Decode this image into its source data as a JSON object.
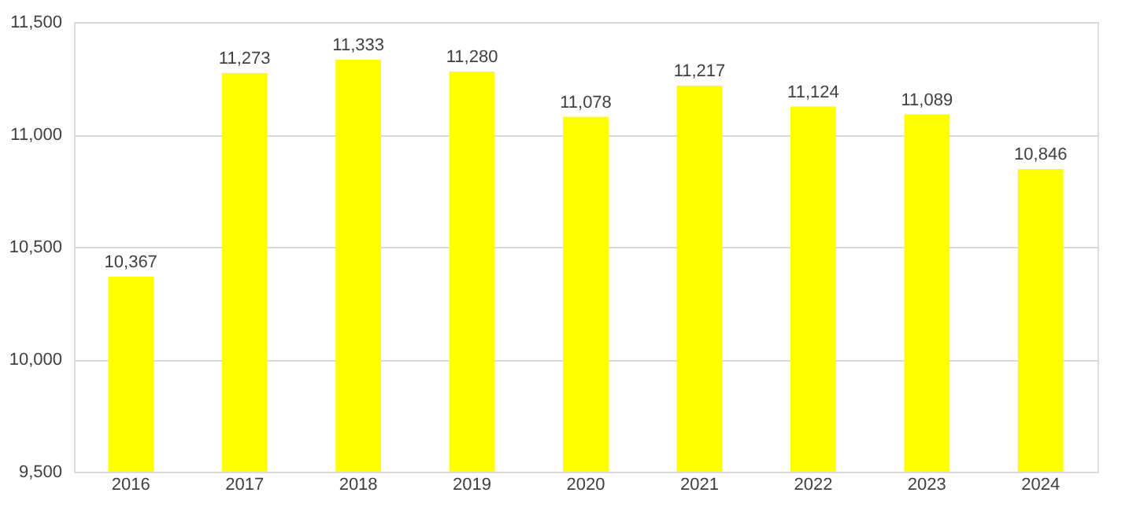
{
  "chart_data": {
    "type": "bar",
    "categories": [
      "2016",
      "2017",
      "2018",
      "2019",
      "2020",
      "2021",
      "2022",
      "2023",
      "2024"
    ],
    "values": [
      10367,
      11273,
      11333,
      11280,
      11078,
      11217,
      11124,
      11089,
      10846
    ],
    "value_labels": [
      "10,367",
      "11,273",
      "11,333",
      "11,280",
      "11,078",
      "11,217",
      "11,124",
      "11,089",
      "10,846"
    ],
    "color": "#ffff00",
    "ylim": [
      9500,
      11500
    ],
    "yticks": [
      {
        "value": 9500,
        "label": "9,500"
      },
      {
        "value": 10000,
        "label": "10,000"
      },
      {
        "value": 10500,
        "label": "10,500"
      },
      {
        "value": 11000,
        "label": "11,000"
      },
      {
        "value": 11500,
        "label": "11,500"
      }
    ],
    "grid": "y"
  }
}
